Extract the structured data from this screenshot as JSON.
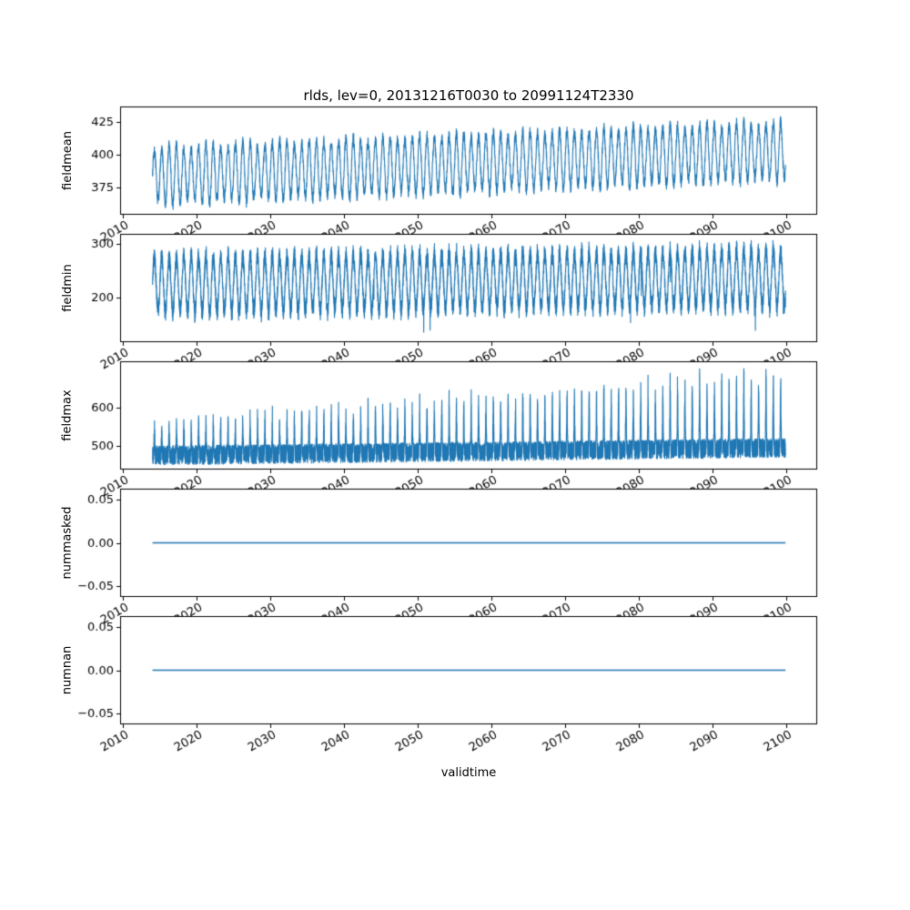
{
  "title": "rlds, lev=0, 20131216T0030 to 20991124T2330",
  "xlabel": "validtime",
  "line_color": "#1f77b4",
  "axes": {
    "xlim": [
      2009.6,
      2104.2
    ],
    "x_ticks": [
      2010,
      2020,
      2030,
      2040,
      2050,
      2060,
      2070,
      2080,
      2090,
      2100
    ],
    "x_data_range": [
      2014.0,
      2099.9
    ],
    "tick_label_rotation_deg": 30
  },
  "chart_data": [
    {
      "type": "line",
      "name": "fieldmean",
      "ylabel": "fieldmean",
      "yticks": [
        375,
        400,
        425
      ],
      "ytick_labels": [
        "375",
        "400",
        "425"
      ],
      "ylim": [
        354,
        437
      ],
      "summary": {
        "description": "dense annual oscillation, slowly rising mean",
        "mean_start": 384,
        "mean_end": 403,
        "seasonal_amplitude": 21,
        "noise": 4.5,
        "approx_min": 360,
        "approx_max": 432
      }
    },
    {
      "type": "line",
      "name": "fieldmin",
      "ylabel": "fieldmin",
      "yticks": [
        200,
        300
      ],
      "ytick_labels": [
        "200",
        "300"
      ],
      "ylim": [
        118,
        318
      ],
      "summary": {
        "description": "very dense noisy band with annual cycle and occasional low dips",
        "mean_start": 224,
        "mean_end": 236,
        "seasonal_amplitude": 58,
        "noise": 15,
        "approx_min": 130,
        "approx_max": 308
      }
    },
    {
      "type": "line",
      "name": "fieldmax",
      "ylabel": "fieldmax",
      "yticks": [
        500,
        600
      ],
      "ytick_labels": [
        "500",
        "600"
      ],
      "ylim": [
        438,
        722
      ],
      "summary": {
        "description": "dense base band with annual upward spikes growing over time",
        "base_start": 475,
        "base_end": 495,
        "noise": 25,
        "spike_max_start": 590,
        "spike_max_end": 705,
        "approx_min": 450,
        "approx_max": 705
      }
    },
    {
      "type": "line",
      "name": "nummasked",
      "ylabel": "nummasked",
      "yticks": [
        0.05,
        0.0,
        -0.05
      ],
      "ytick_labels": [
        "0.05",
        "0.00",
        "−0.05"
      ],
      "ylim": [
        -0.0625,
        0.0625
      ],
      "summary": {
        "description": "constant zero line",
        "constant_value": 0.0
      }
    },
    {
      "type": "line",
      "name": "numnan",
      "ylabel": "numnan",
      "yticks": [
        0.05,
        0.0,
        -0.05
      ],
      "ytick_labels": [
        "0.05",
        "0.00",
        "−0.05"
      ],
      "ylim": [
        -0.0625,
        0.0625
      ],
      "summary": {
        "description": "constant zero line",
        "constant_value": 0.0
      }
    }
  ]
}
